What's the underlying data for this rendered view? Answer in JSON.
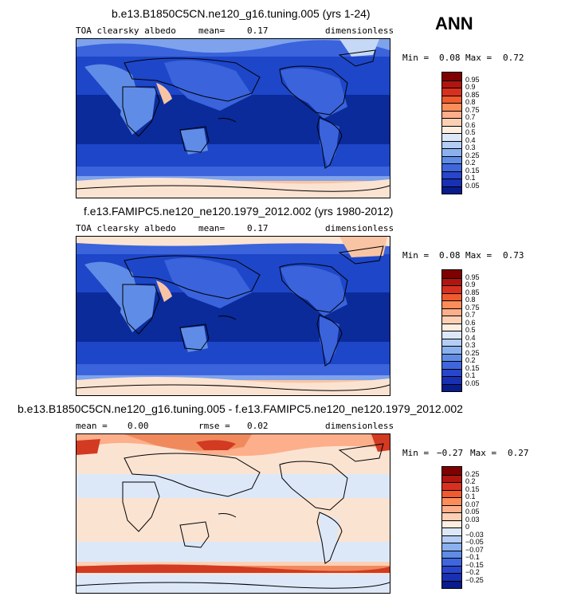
{
  "season": "ANN",
  "panels": [
    {
      "title": "b.e13.B1850C5CN.ne120_g16.tuning.005 (yrs 1-24)",
      "left_label": "TOA clearsky albedo",
      "stat_label": "mean=",
      "stat_value": "0.17",
      "right_label": "dimensionless",
      "minmax": {
        "min_label": "Min =",
        "min": "0.08",
        "max_label": "Max =",
        "max": "0.72"
      }
    },
    {
      "title": "f.e13.FAMIPC5.ne120_ne120.1979_2012.002 (yrs 1980-2012)",
      "left_label": "TOA clearsky albedo",
      "stat_label": "mean=",
      "stat_value": "0.17",
      "right_label": "dimensionless",
      "minmax": {
        "min_label": "Min =",
        "min": "0.08",
        "max_label": "Max =",
        "max": "0.73"
      }
    },
    {
      "title": "b.e13.B1850C5CN.ne120_g16.tuning.005 - f.e13.FAMIPC5.ne120_ne120.1979_2012.002",
      "left_label": "mean =",
      "left_value": "0.00",
      "stat_label": "rmse =",
      "stat_value": "0.02",
      "right_label": "dimensionless",
      "minmax": {
        "min_label": "Min =",
        "min": "−0.27",
        "max_label": "Max =",
        "max": "0.27"
      }
    }
  ],
  "colorbar_abs": {
    "labels": [
      "0.95",
      "0.9",
      "0.85",
      "0.8",
      "0.75",
      "0.7",
      "0.6",
      "0.5",
      "0.4",
      "0.3",
      "0.25",
      "0.2",
      "0.15",
      "0.1",
      "0.05"
    ],
    "colors": [
      "#7f0000",
      "#b0150f",
      "#d7301f",
      "#ef5a2f",
      "#fc8d59",
      "#fdae8a",
      "#fdd0b5",
      "#fdeee0",
      "#dce8f8",
      "#b4cdf5",
      "#8ab0ee",
      "#5f8ce6",
      "#3f66dc",
      "#2845cc",
      "#1830b4",
      "#091c8c"
    ]
  },
  "colorbar_diff": {
    "labels": [
      "0.25",
      "0.2",
      "0.15",
      "0.1",
      "0.07",
      "0.05",
      "0.03",
      "0",
      "−0.03",
      "−0.05",
      "−0.07",
      "−0.1",
      "−0.15",
      "−0.2",
      "−0.25"
    ],
    "colors": [
      "#7f0000",
      "#b0150f",
      "#d7301f",
      "#ef5a2f",
      "#fc8d59",
      "#fdae8a",
      "#fdd0b5",
      "#fdeee0",
      "#dce8f8",
      "#b4cdf5",
      "#8ab0ee",
      "#5f8ce6",
      "#3f66dc",
      "#2845cc",
      "#1830b4",
      "#091c8c"
    ]
  },
  "map_colors": {
    "deep_blue": "#0b2b9a",
    "mid_blue": "#1d46c9",
    "blue": "#3a63dc",
    "light_blue": "#7ea2ec",
    "pale_blue": "#c5d8f6",
    "pale_peach": "#fbe3d2",
    "peach": "#f8c4a4",
    "orange": "#f08a5c",
    "red": "#d23a22"
  }
}
